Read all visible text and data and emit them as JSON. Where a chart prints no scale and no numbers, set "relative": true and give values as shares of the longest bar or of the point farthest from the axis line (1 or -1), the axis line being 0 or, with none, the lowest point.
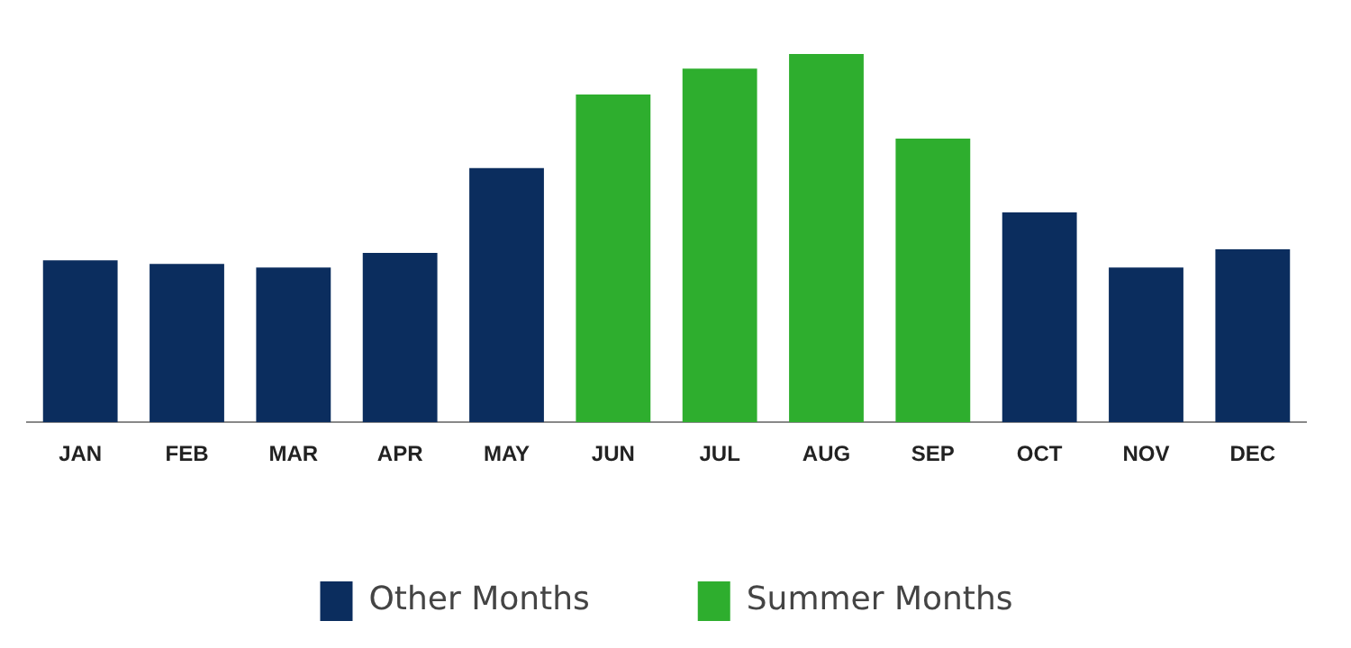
{
  "chart_data": {
    "type": "bar",
    "relative": true,
    "categories": [
      "JAN",
      "FEB",
      "MAR",
      "APR",
      "MAY",
      "JUN",
      "JUL",
      "AUG",
      "SEP",
      "OCT",
      "NOV",
      "DEC"
    ],
    "series": [
      {
        "name": "Other Months",
        "color": "#0b2d5e",
        "values": [
          0.44,
          0.43,
          0.42,
          0.46,
          0.69,
          null,
          null,
          null,
          null,
          0.57,
          0.42,
          0.47
        ]
      },
      {
        "name": "Summer Months",
        "color": "#2eae2e",
        "values": [
          null,
          null,
          null,
          null,
          null,
          0.89,
          0.96,
          1,
          0.77,
          null,
          null,
          null
        ]
      }
    ],
    "legend": "bottom"
  }
}
